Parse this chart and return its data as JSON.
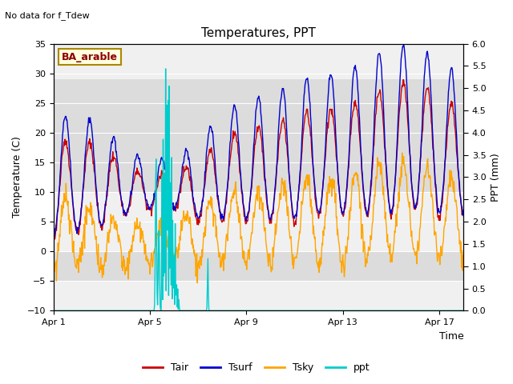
{
  "title": "Temperatures, PPT",
  "top_left_text": "No data for f_Tdew",
  "box_label": "BA_arable",
  "xlabel": "Time",
  "ylabel_left": "Temperature (C)",
  "ylabel_right": "PPT (mm)",
  "ylim_left": [
    -10,
    35
  ],
  "ylim_right": [
    0.0,
    6.0
  ],
  "yticks_left": [
    -10,
    -5,
    0,
    5,
    10,
    15,
    20,
    25,
    30,
    35
  ],
  "yticks_right": [
    0.0,
    0.5,
    1.0,
    1.5,
    2.0,
    2.5,
    3.0,
    3.5,
    4.0,
    4.5,
    5.0,
    5.5,
    6.0
  ],
  "xtick_labels": [
    "Apr 1",
    "Apr 5",
    "Apr 9",
    "Apr 13",
    "Apr 17"
  ],
  "xtick_positions": [
    0,
    4,
    8,
    12,
    16
  ],
  "xlim": [
    0,
    17
  ],
  "bg_band": [
    10,
    29
  ],
  "bg_band2": [
    -5,
    0
  ],
  "colors": {
    "Tair": "#cc0000",
    "Tsurf": "#0000cc",
    "Tsky": "#ffa500",
    "ppt": "#00cccc",
    "bg_band": "#dcdcdc",
    "bg_band2": "#dcdcdc",
    "axes_bg": "#f0f0f0"
  },
  "legend_entries": [
    "Tair",
    "Tsurf",
    "Tsky",
    "ppt"
  ],
  "figsize": [
    6.4,
    4.8
  ],
  "dpi": 100
}
